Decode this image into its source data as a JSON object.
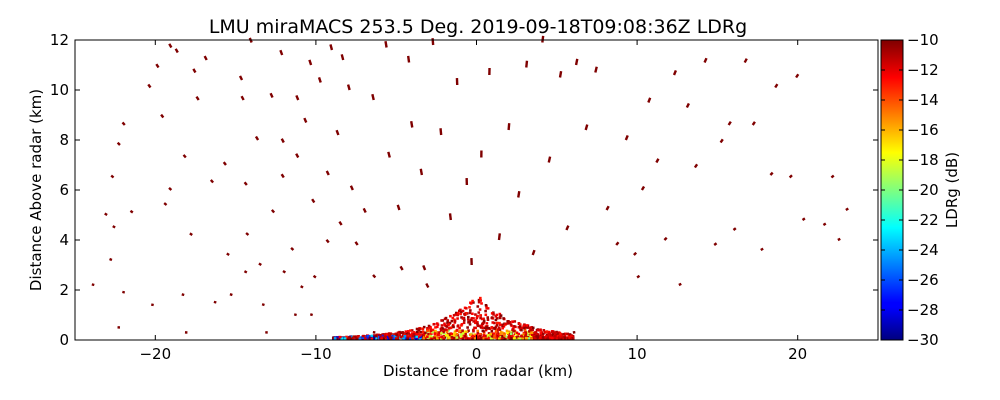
{
  "chart_data": {
    "type": "heatmap",
    "title": "LMU miraMACS 253.5 Deg. 2019-09-18T09:08:36Z  LDRg",
    "xlabel": "Distance from radar (km)",
    "ylabel": "Distance Above radar  (km)",
    "xlim": [
      -25,
      25
    ],
    "ylim": [
      0,
      12
    ],
    "x_ticks": [
      -20,
      -10,
      0,
      10,
      20
    ],
    "x_tick_labels": [
      "−20",
      "−10",
      "0",
      "10",
      "20"
    ],
    "y_ticks": [
      0,
      2,
      4,
      6,
      8,
      10,
      12
    ],
    "y_tick_labels": [
      "0",
      "2",
      "4",
      "6",
      "8",
      "10",
      "12"
    ],
    "colorbar": {
      "label": "LDRg (dB)",
      "range": [
        -30,
        -10
      ],
      "colormap": "jet",
      "ticks": [
        -10,
        -12,
        -14,
        -16,
        -18,
        -20,
        -22,
        -24,
        -26,
        -28,
        -30
      ],
      "tick_labels": [
        "−10",
        "−12",
        "−14",
        "−16",
        "−18",
        "−20",
        "−22",
        "−24",
        "−26",
        "−28",
        "−30"
      ]
    },
    "scan_azimuth_deg": 253.5,
    "clutter_streaks": [
      [
        -23.8,
        2.2
      ],
      [
        -22.2,
        0.5
      ],
      [
        -21.9,
        1.9
      ],
      [
        -22.7,
        3.2
      ],
      [
        -22.5,
        4.5
      ],
      [
        -23.0,
        5.0
      ],
      [
        -22.6,
        6.5
      ],
      [
        -22.2,
        7.8
      ],
      [
        -21.9,
        8.6
      ],
      [
        -21.4,
        5.1
      ],
      [
        -20.3,
        10.1
      ],
      [
        -19.8,
        10.9
      ],
      [
        -19.5,
        8.9
      ],
      [
        -19.0,
        6.0
      ],
      [
        -19.3,
        5.4
      ],
      [
        -20.1,
        1.4
      ],
      [
        -18.6,
        11.5
      ],
      [
        -19.0,
        11.7
      ],
      [
        -18.1,
        7.3
      ],
      [
        -17.7,
        4.2
      ],
      [
        -18.2,
        1.8
      ],
      [
        -18.0,
        0.3
      ],
      [
        -17.3,
        9.6
      ],
      [
        -17.5,
        10.7
      ],
      [
        -16.8,
        11.2
      ],
      [
        -16.4,
        6.3
      ],
      [
        -16.2,
        1.5
      ],
      [
        -15.6,
        7.0
      ],
      [
        -15.4,
        3.4
      ],
      [
        -15.2,
        1.8
      ],
      [
        -14.6,
        10.4
      ],
      [
        -14.5,
        9.6
      ],
      [
        -14.3,
        6.2
      ],
      [
        -14.2,
        4.2
      ],
      [
        -14.3,
        2.7
      ],
      [
        -14.0,
        11.9
      ],
      [
        -13.6,
        8.0
      ],
      [
        -13.4,
        3.0
      ],
      [
        -13.2,
        1.4
      ],
      [
        -13.0,
        0.3
      ],
      [
        -12.7,
        9.7
      ],
      [
        -12.6,
        5.1
      ],
      [
        -12.1,
        11.4
      ],
      [
        -12.0,
        7.9
      ],
      [
        -12.0,
        6.5
      ],
      [
        -11.9,
        2.7
      ],
      [
        -11.4,
        3.6
      ],
      [
        -11.2,
        1.0
      ],
      [
        -11.1,
        9.6
      ],
      [
        -11.1,
        7.3
      ],
      [
        -10.8,
        2.1
      ],
      [
        -10.6,
        8.7
      ],
      [
        -10.3,
        11.0
      ],
      [
        -10.1,
        5.5
      ],
      [
        -10.0,
        2.5
      ],
      [
        -10.2,
        1.0
      ],
      [
        -9.7,
        10.3
      ],
      [
        -9.2,
        3.9
      ],
      [
        -9.0,
        11.6
      ],
      [
        -9.2,
        6.6
      ],
      [
        -8.6,
        8.2
      ],
      [
        -8.3,
        11.2
      ],
      [
        -8.4,
        4.6
      ],
      [
        -7.9,
        10.0
      ],
      [
        -7.7,
        6.0
      ],
      [
        -7.4,
        3.8
      ],
      [
        -6.9,
        5.1
      ],
      [
        -6.4,
        9.6
      ],
      [
        -6.3,
        2.5
      ],
      [
        -5.6,
        11.7
      ],
      [
        -5.4,
        7.3
      ],
      [
        -4.8,
        5.2
      ],
      [
        -4.6,
        2.8
      ],
      [
        -4.2,
        11.1
      ],
      [
        -4.0,
        8.5
      ],
      [
        -3.4,
        6.6
      ],
      [
        -3.0,
        2.1
      ],
      [
        -2.7,
        11.8
      ],
      [
        -2.2,
        8.2
      ],
      [
        -1.6,
        4.8
      ],
      [
        -1.2,
        10.2
      ],
      [
        -0.6,
        6.2
      ],
      [
        -0.3,
        3.0
      ],
      [
        0.3,
        7.3
      ],
      [
        0.8,
        10.6
      ],
      [
        1.4,
        4.0
      ],
      [
        2.0,
        8.4
      ],
      [
        2.6,
        5.7
      ],
      [
        3.1,
        10.9
      ],
      [
        3.5,
        3.4
      ],
      [
        4.1,
        11.9
      ],
      [
        4.5,
        7.1
      ],
      [
        5.2,
        10.5
      ],
      [
        5.6,
        4.4
      ],
      [
        6.2,
        11.0
      ],
      [
        6.8,
        8.4
      ],
      [
        7.4,
        10.7
      ],
      [
        8.1,
        5.2
      ],
      [
        8.7,
        3.8
      ],
      [
        9.3,
        8.0
      ],
      [
        9.8,
        3.4
      ],
      [
        10.3,
        6.0
      ],
      [
        10.7,
        9.5
      ],
      [
        11.2,
        7.1
      ],
      [
        11.7,
        4.0
      ],
      [
        12.3,
        10.6
      ],
      [
        12.6,
        2.2
      ],
      [
        13.1,
        9.3
      ],
      [
        13.6,
        6.9
      ],
      [
        14.2,
        11.1
      ],
      [
        14.8,
        3.8
      ],
      [
        15.2,
        7.9
      ],
      [
        15.7,
        8.6
      ],
      [
        16.0,
        4.4
      ],
      [
        16.7,
        11.1
      ],
      [
        17.2,
        8.6
      ],
      [
        17.7,
        3.6
      ],
      [
        18.3,
        6.6
      ],
      [
        18.6,
        10.1
      ],
      [
        19.5,
        6.5
      ],
      [
        19.9,
        10.5
      ],
      [
        20.3,
        4.8
      ],
      [
        21.6,
        4.6
      ],
      [
        22.1,
        6.5
      ],
      [
        23.0,
        5.2
      ],
      [
        22.5,
        4.0
      ],
      [
        -6.3,
        0.3
      ],
      [
        6.0,
        0.3
      ],
      [
        10.0,
        2.5
      ],
      [
        -3.2,
        2.8
      ]
    ],
    "near_field_echo": {
      "description_x_range_km": [
        -9,
        6
      ],
      "max_height_km": 1.8,
      "dominant_value_dB": -11,
      "min_value_dB": -30
    }
  }
}
